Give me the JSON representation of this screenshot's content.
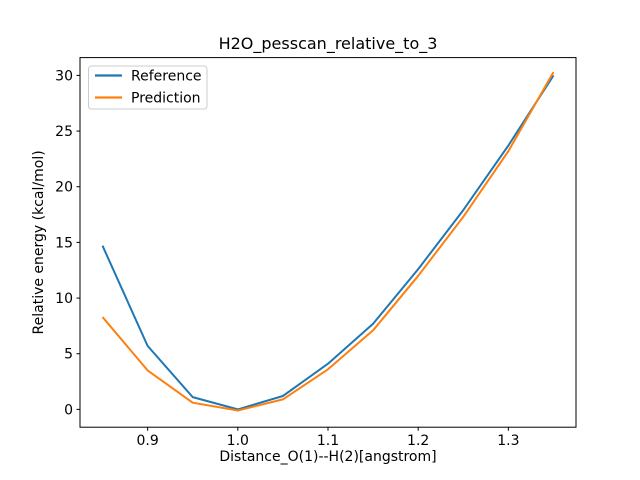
{
  "figure": {
    "background": "#ffffff",
    "frame_color": "#000000"
  },
  "chart_data": {
    "type": "line",
    "title": "H2O_pesscan_relative_to_3",
    "xlabel": "Distance_O(1)--H(2)[angstrom]",
    "ylabel": "Relative energy (kcal/mol)",
    "x": [
      0.85,
      0.9,
      0.95,
      1.0,
      1.05,
      1.1,
      1.15,
      1.2,
      1.25,
      1.3,
      1.35
    ],
    "series": [
      {
        "name": "Reference",
        "color": "#1f77b4",
        "values": [
          14.7,
          5.7,
          1.1,
          0.0,
          1.2,
          4.1,
          7.7,
          12.6,
          17.9,
          23.7,
          30.0
        ]
      },
      {
        "name": "Prediction",
        "color": "#ff7f0e",
        "values": [
          8.3,
          3.5,
          0.6,
          -0.1,
          0.9,
          3.6,
          7.1,
          12.0,
          17.3,
          23.2,
          30.3
        ]
      }
    ],
    "xlim": [
      0.825,
      1.375
    ],
    "ylim": [
      -1.6,
      31.6
    ],
    "xticks": [
      0.9,
      1.0,
      1.1,
      1.2,
      1.3
    ],
    "xtick_labels": [
      "0.9",
      "1.0",
      "1.1",
      "1.2",
      "1.3"
    ],
    "yticks": [
      0,
      5,
      10,
      15,
      20,
      25,
      30
    ],
    "ytick_labels": [
      "0",
      "5",
      "10",
      "15",
      "20",
      "25",
      "30"
    ],
    "grid": false,
    "legend_position": "upper-left"
  }
}
